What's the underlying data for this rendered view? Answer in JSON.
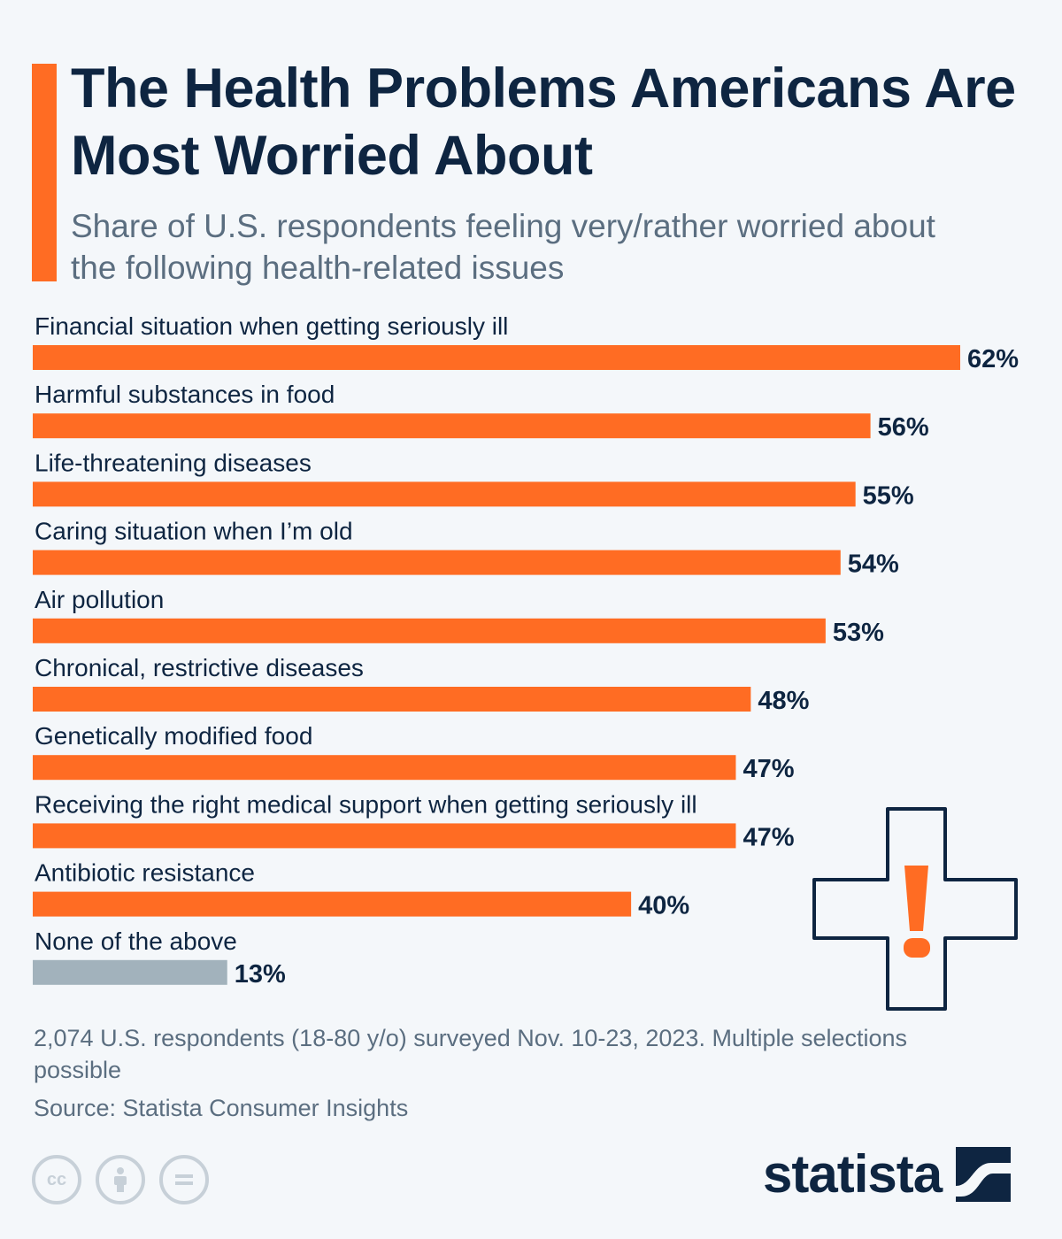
{
  "header": {
    "title": "The Health Problems Americans Are Most Worried About",
    "subtitle": "Share of U.S. respondents feeling very/rather worried about the following health-related issues"
  },
  "chart_data": {
    "type": "bar",
    "orientation": "horizontal",
    "title": "The Health Problems Americans Are Most Worried About",
    "subtitle": "Share of U.S. respondents feeling very/rather worried about the following health-related issues",
    "unit": "%",
    "categories": [
      "Financial situation when getting seriously ill",
      "Harmful substances in food",
      "Life-threatening diseases",
      "Caring situation when I’m old",
      "Air pollution",
      "Chronical, restrictive diseases",
      "Genetically modified food",
      "Receiving the right medical support when getting seriously ill",
      "Antibiotic resistance",
      "None of the above"
    ],
    "values": [
      62,
      56,
      55,
      54,
      53,
      48,
      47,
      47,
      40,
      13
    ],
    "value_labels": [
      "62%",
      "56%",
      "55%",
      "54%",
      "53%",
      "48%",
      "47%",
      "47%",
      "40%",
      "13%"
    ],
    "colors": [
      "#ff6c23",
      "#ff6c23",
      "#ff6c23",
      "#ff6c23",
      "#ff6c23",
      "#ff6c23",
      "#ff6c23",
      "#ff6c23",
      "#ff6c23",
      "#a2b2bc"
    ],
    "xlim": [
      0,
      62
    ],
    "grid": false,
    "legend": "none"
  },
  "footer": {
    "note": "2,074 U.S. respondents (18-80 y/o) surveyed Nov. 10-23, 2023. Multiple selections possible",
    "source": "Source: Statista Consumer Insights",
    "brand": "statista",
    "license_icons": [
      "cc-icon",
      "by-icon",
      "nd-icon"
    ]
  },
  "decoration": {
    "icon": "medical-cross-exclamation-icon",
    "accent_color": "#ff6c23",
    "text_color": "#0e2541"
  }
}
